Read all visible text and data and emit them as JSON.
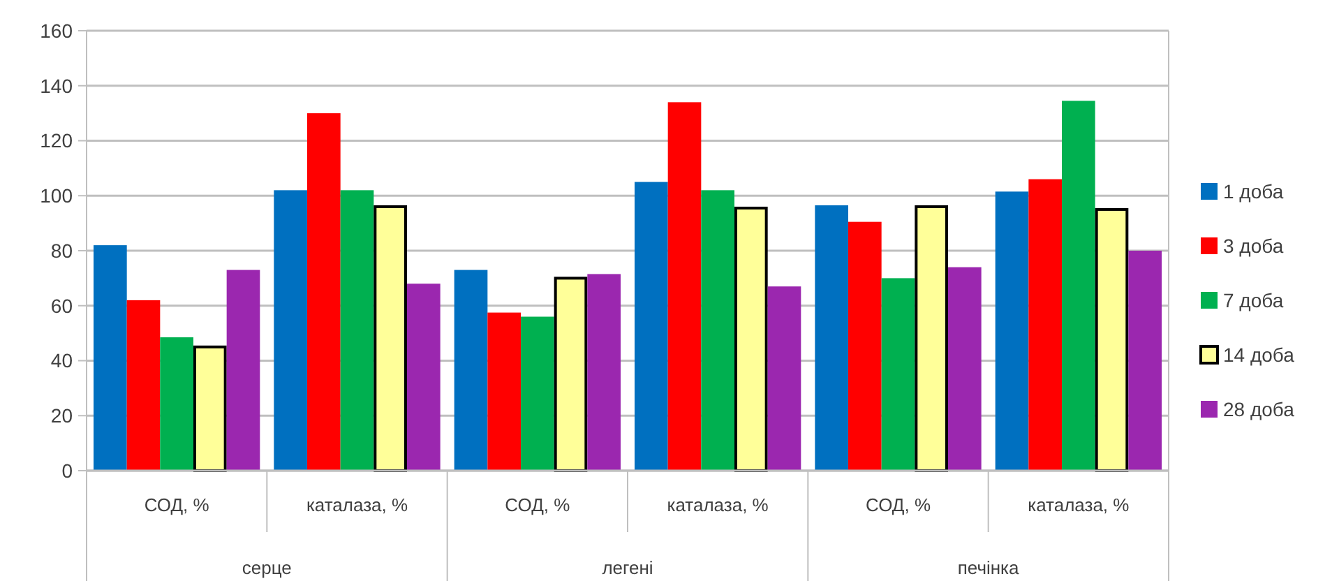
{
  "chart_data": {
    "type": "bar",
    "categories": [
      "СОД, %",
      "каталаза, %",
      "СОД, %",
      "каталаза, %",
      "СОД, %",
      "каталаза, %"
    ],
    "series": [
      {
        "name": "1 доба",
        "color": "#0070c0",
        "values": [
          82,
          102,
          73,
          105,
          96.5,
          101.5
        ]
      },
      {
        "name": "3 доба",
        "color": "#ff0000",
        "values": [
          62,
          130,
          57.5,
          134,
          90.5,
          106
        ]
      },
      {
        "name": "7 доба",
        "color": "#00b050",
        "values": [
          48.5,
          102,
          56,
          102,
          70,
          134.5
        ]
      },
      {
        "name": "14 доба",
        "color": "#ffff99",
        "values": [
          45,
          96,
          70,
          95.5,
          96,
          95
        ]
      },
      {
        "name": "28 доба",
        "color": "#9b27af",
        "values": [
          73,
          68,
          71.5,
          67,
          74,
          80
        ]
      }
    ],
    "annotations": [
      "серце",
      "легені",
      "печінка"
    ],
    "ylim": [
      0,
      160
    ],
    "yticks": [
      0,
      20,
      40,
      60,
      80,
      100,
      120,
      140,
      160
    ],
    "grid": "y",
    "legend": "right"
  }
}
